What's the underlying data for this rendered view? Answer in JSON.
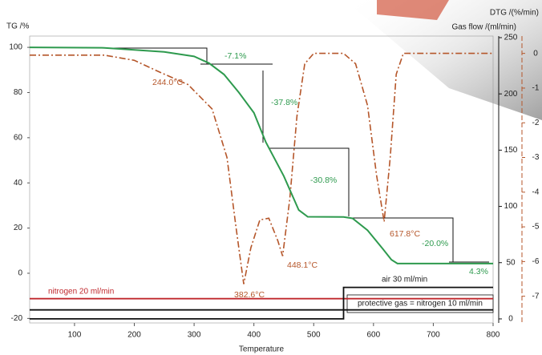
{
  "chart_data": {
    "type": "line",
    "y_label": "TG /%",
    "y2_label": "DTG /(%/min)",
    "y3_label": "Gas flow /(ml/min)",
    "x_label": "Temperature",
    "xlim": [
      25,
      800
    ],
    "xticks": [
      100,
      200,
      300,
      400,
      500,
      600,
      700,
      800
    ],
    "ylim": [
      -22,
      105
    ],
    "yticks": [
      100,
      80,
      60,
      40,
      20,
      0,
      -20
    ],
    "y2lim": [
      -7.77,
      0.5
    ],
    "y2ticks": [
      0,
      -1,
      -2,
      -3,
      -4,
      -5,
      -6,
      -7
    ],
    "y3lim": [
      -3.6,
      251.4
    ],
    "y3ticks": [
      0,
      50,
      100,
      150,
      200,
      250
    ],
    "tg": {
      "color": "#2e9a4e",
      "x": [
        25,
        150,
        250,
        300,
        325,
        350,
        375,
        400,
        420,
        450,
        475,
        490,
        550,
        565,
        590,
        615,
        630,
        640,
        800
      ],
      "values": [
        100,
        99.8,
        98,
        96,
        93,
        88,
        80,
        71,
        58,
        43,
        28,
        25,
        24.9,
        24.3,
        19,
        11,
        6,
        4.3,
        4.3
      ]
    },
    "dtg": {
      "color": "#b5562a",
      "x": [
        25,
        150,
        200,
        244,
        290,
        330,
        355,
        370,
        383,
        395,
        410,
        425,
        440,
        448,
        460,
        472,
        485,
        500,
        550,
        570,
        590,
        605,
        617.8,
        628,
        638,
        650,
        800
      ],
      "values": [
        -0.05,
        -0.05,
        -0.2,
        -0.55,
        -0.9,
        -1.6,
        -3,
        -5,
        -6.65,
        -5.6,
        -4.8,
        -4.75,
        -5.4,
        -5.84,
        -4.2,
        -1.8,
        -0.3,
        0,
        0,
        -0.3,
        -1.5,
        -3.5,
        -4.85,
        -3,
        -0.6,
        0,
        0
      ]
    },
    "gas": [
      {
        "name": "nitrogen 20 ml/min",
        "color": "#c0282d",
        "x": [
          25,
          800
        ],
        "values": [
          18,
          18
        ]
      },
      {
        "name": "protective gas = nitrogen 10 ml/min",
        "color": "#111111",
        "x": [
          25,
          800
        ],
        "values": [
          8,
          8
        ]
      },
      {
        "name": "air 30 ml/min",
        "color": "#111111",
        "x": [
          25,
          550,
          550,
          800
        ],
        "values": [
          0,
          0,
          28,
          28
        ]
      }
    ],
    "annotations": [
      "-7.1%",
      "-37.8%",
      "-30.8%",
      "-20.0%",
      "4.3%",
      "244.0°C",
      "382.6°C",
      "448.1°C",
      "617.8°C"
    ]
  }
}
